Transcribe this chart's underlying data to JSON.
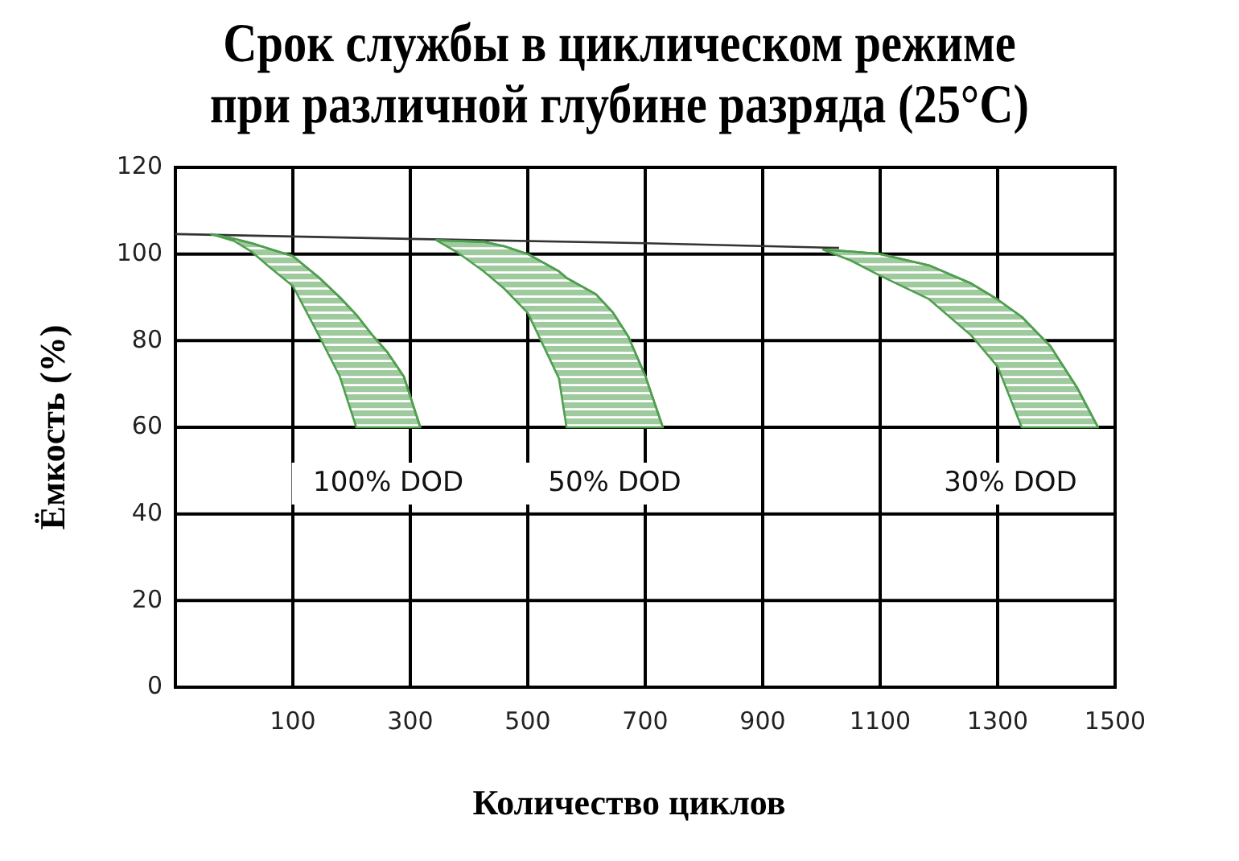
{
  "chart_data": {
    "type": "line",
    "title": "Срок службы в циклическом режиме\nпри различной глубине разряда  (25°C)",
    "xlabel": "Количество циклов",
    "ylabel": "Ёмкость (%)",
    "xlim": [
      -100,
      1500
    ],
    "xticks": [
      {
        "value": -100,
        "label": null
      },
      100,
      300,
      500,
      700,
      900,
      1100,
      1300,
      1500
    ],
    "ylim": [
      0,
      120
    ],
    "yticks": [
      0,
      20,
      40,
      60,
      80,
      100,
      120
    ],
    "grid": true,
    "series": [
      {
        "color": "#333333",
        "x": [
          -100,
          300,
          700,
          1030
        ],
        "values": [
          104.6,
          103.5,
          102.5,
          101.4
        ]
      },
      {
        "name": "100% DOD",
        "color": "#4f9f4f",
        "x": [
          -39,
          0,
          30,
          60,
          100,
          145,
          180,
          208,
          237,
          260,
          289,
          317
        ],
        "values": [
          104.6,
          103.5,
          102.5,
          101.2,
          99.5,
          94.5,
          90,
          86,
          81,
          77.5,
          71.7,
          60
        ],
        "upper": [
          104.6,
          103.5,
          102.5,
          101.2,
          99.5,
          94.5,
          90,
          86,
          81,
          77.5,
          71.7,
          60
        ],
        "lower": [
          104.6,
          103,
          100.5,
          97,
          92.6,
          81,
          71.7,
          60,
          60,
          60,
          60,
          60
        ]
      },
      {
        "name": "50% DOD",
        "color": "#4f9f4f",
        "x": [
          344,
          380,
          425,
          460,
          500,
          553,
          566,
          616,
          645,
          671,
          700,
          730
        ],
        "values": [
          103.2,
          103,
          102.8,
          101.8,
          100,
          96,
          94.5,
          90.7,
          86.5,
          81,
          71.9,
          60
        ],
        "upper": [
          103.2,
          103,
          102.8,
          101.8,
          100,
          96,
          94.5,
          90.7,
          86.5,
          81,
          71.9,
          60
        ],
        "lower": [
          103.2,
          100.4,
          96,
          92,
          86.4,
          71.3,
          60,
          60,
          60,
          60,
          60,
          60
        ]
      },
      {
        "name": "30% DOD",
        "color": "#4f9f4f",
        "x": [
          1003,
          1050,
          1100,
          1183,
          1255,
          1300,
          1341,
          1390,
          1435,
          1471
        ],
        "values": [
          101,
          100.6,
          100,
          97.4,
          93.2,
          89.5,
          85.5,
          78.7,
          69.2,
          60
        ],
        "upper": [
          101,
          100.6,
          100,
          97.4,
          93.2,
          89.5,
          85.5,
          78.7,
          69.2,
          60
        ],
        "lower": [
          101,
          98.5,
          95,
          89.6,
          81.2,
          74,
          60,
          60,
          60,
          60
        ]
      }
    ]
  }
}
